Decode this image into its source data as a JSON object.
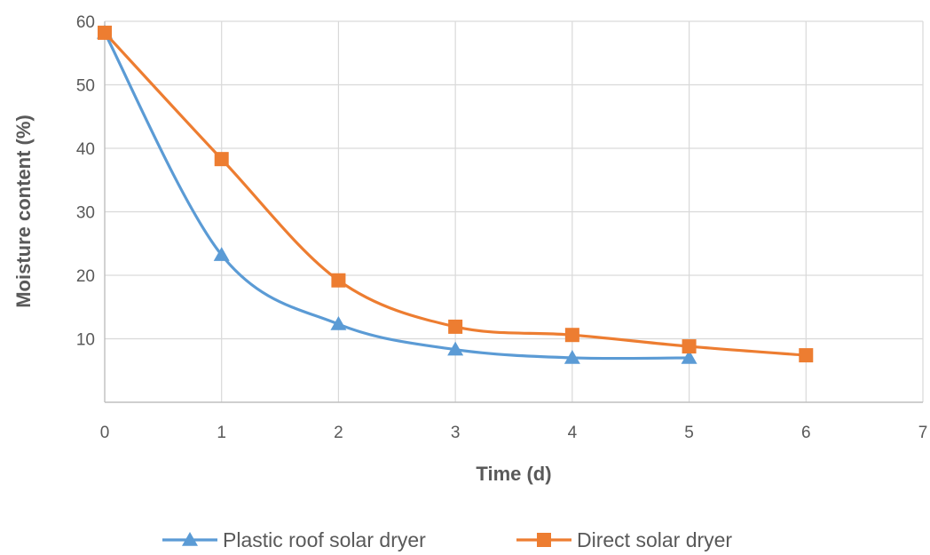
{
  "chart_data": {
    "type": "line",
    "title": "",
    "xlabel": "Time (d)",
    "ylabel": "Moisture content (%)",
    "xlim": [
      0,
      7
    ],
    "ylim": [
      0,
      60
    ],
    "xticks": [
      0,
      1,
      2,
      3,
      4,
      5,
      6,
      7
    ],
    "yticks": [
      10,
      20,
      30,
      40,
      50,
      60
    ],
    "grid": true,
    "smooth": true,
    "legend_position": "bottom",
    "series": [
      {
        "name": "Plastic roof solar dryer",
        "color": "#5B9BD5",
        "marker": "triangle",
        "x": [
          0,
          1,
          2,
          3,
          4,
          5
        ],
        "y": [
          58.2,
          23.2,
          12.3,
          8.3,
          7.0,
          7.0
        ]
      },
      {
        "name": "Direct solar dryer",
        "color": "#ED7D31",
        "marker": "square",
        "x": [
          0,
          1,
          2,
          3,
          4,
          5,
          6
        ],
        "y": [
          58.2,
          38.3,
          19.2,
          11.9,
          10.6,
          8.8,
          7.4
        ]
      }
    ]
  }
}
